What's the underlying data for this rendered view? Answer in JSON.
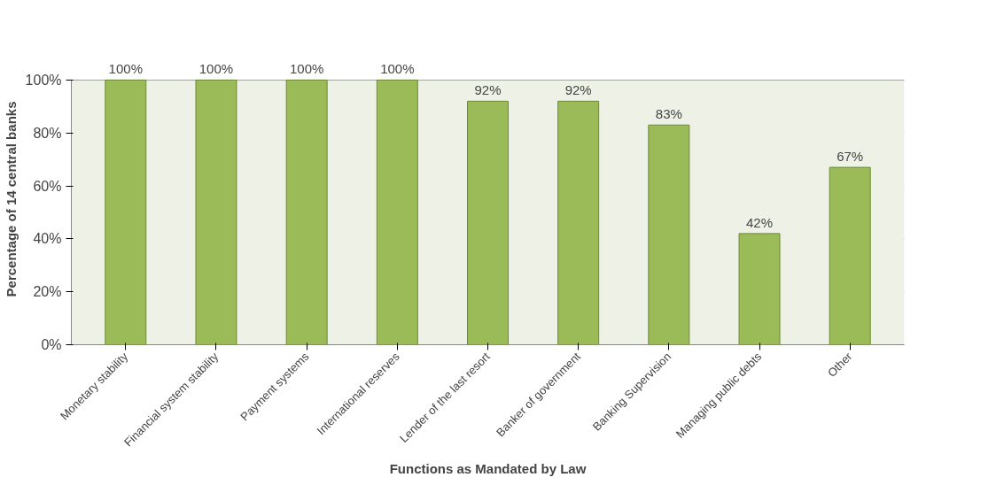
{
  "chart_data": {
    "type": "bar",
    "xlabel": "Functions as Mandated by Law",
    "ylabel": "Percentage of 14 central banks",
    "categories": [
      "Monetary stability",
      "Financial system stability",
      "Payment systems",
      "International reserves",
      "Lender of the last resort",
      "Banker of government",
      "Banking Supervision",
      "Managing public debts",
      "Other"
    ],
    "values": [
      100,
      100,
      100,
      100,
      92,
      92,
      83,
      42,
      67
    ],
    "value_labels": [
      "100%",
      "100%",
      "100%",
      "100%",
      "92%",
      "92%",
      "83%",
      "42%",
      "67%"
    ],
    "color": "#9bbb59",
    "ylim": [
      0,
      100
    ],
    "yticks": [
      {
        "value": 0,
        "label": "0%"
      },
      {
        "value": 20,
        "label": "20%"
      },
      {
        "value": 40,
        "label": "40%"
      },
      {
        "value": 60,
        "label": "60%"
      },
      {
        "value": 80,
        "label": "80%"
      },
      {
        "value": 100,
        "label": "100%"
      }
    ],
    "grid": "y"
  }
}
